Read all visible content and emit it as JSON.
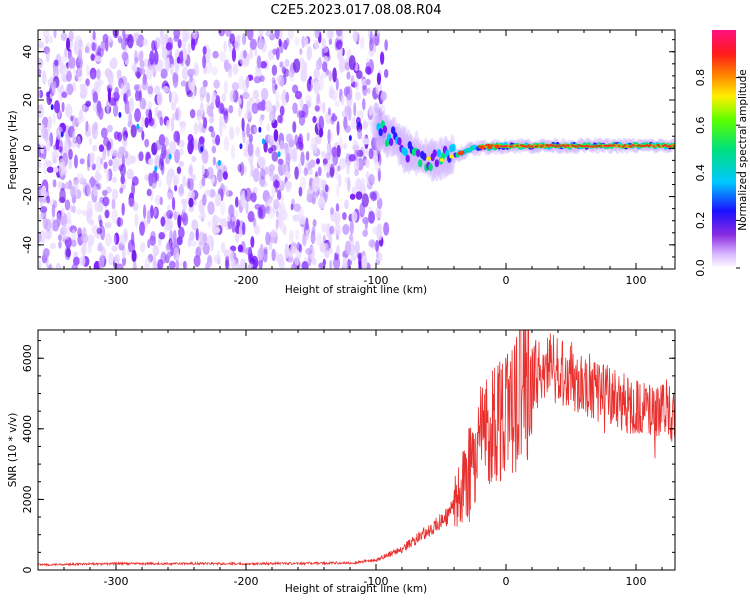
{
  "title": "C2E5.2023.017.08.08.R04",
  "colors": {
    "axis": "#000000",
    "snr_line": "#e8302e",
    "spectrum_base": "#7a17ff"
  },
  "chart_data": [
    {
      "type": "heatmap",
      "xlabel": "Height of straight line (km)",
      "ylabel": "Frequency (Hz)",
      "xlim": [
        -360,
        130
      ],
      "ylim": [
        -50,
        49
      ],
      "x_ticks": [
        -300,
        -200,
        -100,
        0,
        100
      ],
      "x_tick_labels": [
        "-300",
        "-200",
        "-100",
        "0",
        "100"
      ],
      "y_ticks": [
        -40,
        -20,
        0,
        20,
        40
      ],
      "y_tick_labels": [
        "-40",
        "-20",
        "0",
        "20",
        "40"
      ],
      "colorbar": {
        "label": "Normalized spectral amplitude",
        "range": [
          0,
          1
        ],
        "ticks": [
          0,
          0.2,
          0.4,
          0.6,
          0.8
        ],
        "tick_labels": [
          "0.0",
          "0.2",
          "0.4",
          "0.6",
          "0.8"
        ],
        "colormap": "rainbow (white → purple → blue → cyan → green → yellow → red → magenta)"
      },
      "features": {
        "noise_region_x": [
          -360,
          -100
        ],
        "signal_curve": [
          {
            "x": -100,
            "y": 8
          },
          {
            "x": -85,
            "y": 4
          },
          {
            "x": -75,
            "y": -2
          },
          {
            "x": -62,
            "y": -4
          },
          {
            "x": -50,
            "y": -5
          },
          {
            "x": -40,
            "y": -3
          },
          {
            "x": -25,
            "y": 0
          },
          {
            "x": 0,
            "y": 1
          },
          {
            "x": 50,
            "y": 1
          },
          {
            "x": 100,
            "y": 1
          },
          {
            "x": 130,
            "y": 1
          }
        ],
        "peak_band_x": [
          -20,
          130
        ],
        "peak_band_y": 1
      },
      "grid": false
    },
    {
      "type": "line",
      "xlabel": "Height of straight line (km)",
      "ylabel": "SNR (10 * v/v)",
      "xlim": [
        -360,
        130
      ],
      "ylim": [
        0,
        6800
      ],
      "x_ticks": [
        -300,
        -200,
        -100,
        0,
        100
      ],
      "x_tick_labels": [
        "-300",
        "-200",
        "-100",
        "0",
        "100"
      ],
      "y_ticks": [
        0,
        2000,
        4000,
        6000
      ],
      "y_tick_labels": [
        "0",
        "2000",
        "4000",
        "6000"
      ],
      "series_envelope": [
        {
          "x": -360,
          "y": 150
        },
        {
          "x": -300,
          "y": 180
        },
        {
          "x": -200,
          "y": 180
        },
        {
          "x": -120,
          "y": 200
        },
        {
          "x": -100,
          "y": 280
        },
        {
          "x": -80,
          "y": 600
        },
        {
          "x": -60,
          "y": 1100
        },
        {
          "x": -45,
          "y": 1500
        },
        {
          "x": -30,
          "y": 2600
        },
        {
          "x": -20,
          "y": 3800
        },
        {
          "x": -10,
          "y": 4200
        },
        {
          "x": 0,
          "y": 4600
        },
        {
          "x": 10,
          "y": 5200
        },
        {
          "x": 25,
          "y": 5600
        },
        {
          "x": 40,
          "y": 5700
        },
        {
          "x": 60,
          "y": 5300
        },
        {
          "x": 80,
          "y": 4900
        },
        {
          "x": 100,
          "y": 4600
        },
        {
          "x": 130,
          "y": 4400
        }
      ],
      "noise_amplitude_fraction": 0.18,
      "grid": false
    }
  ]
}
